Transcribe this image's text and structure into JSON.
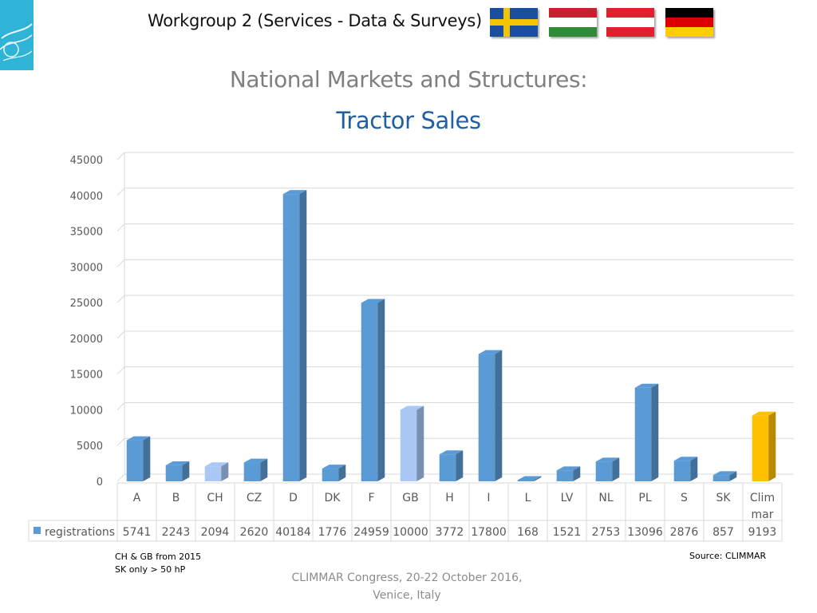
{
  "header": {
    "title": "Workgroup 2 (Services - Data & Surveys)",
    "flags": [
      {
        "name": "sweden-flag-icon",
        "colors": [
          "#1a4fa0",
          "#f5c400"
        ]
      },
      {
        "name": "hungary-flag-icon",
        "colors": [
          "#c8202f",
          "#ffffff",
          "#2e8b3a"
        ]
      },
      {
        "name": "austria-flag-icon",
        "colors": [
          "#e0202e",
          "#ffffff",
          "#e0202e"
        ]
      },
      {
        "name": "germany-flag-icon",
        "colors": [
          "#000000",
          "#dd0000",
          "#ffce00"
        ]
      }
    ]
  },
  "slide": {
    "title": "National Markets and Structures:",
    "subtitle": "Tractor Sales"
  },
  "chart_data": {
    "type": "bar",
    "style": "3d-columns-with-data-table",
    "categories": [
      "A",
      "B",
      "CH",
      "CZ",
      "D",
      "DK",
      "F",
      "GB",
      "H",
      "I",
      "L",
      "LV",
      "NL",
      "PL",
      "S",
      "SK",
      "Clim mar"
    ],
    "series": [
      {
        "name": "registrations",
        "values": [
          5741,
          2243,
          2094,
          2620,
          40184,
          1776,
          24959,
          10000,
          3772,
          17800,
          168,
          1521,
          2753,
          13096,
          2876,
          857,
          9193
        ]
      }
    ],
    "ylim": [
      0,
      45000
    ],
    "yticks": [
      0,
      5000,
      10000,
      15000,
      20000,
      25000,
      30000,
      35000,
      40000,
      45000
    ],
    "grid": true,
    "colors": {
      "default": "#5b9bd5",
      "highlight_light": "#a9c8f5",
      "highlight_total": "#ffc000"
    },
    "bar_color_keys": [
      "default",
      "default",
      "highlight_light",
      "default",
      "default",
      "default",
      "default",
      "highlight_light",
      "default",
      "default",
      "default",
      "default",
      "default",
      "default",
      "default",
      "default",
      "highlight_total"
    ]
  },
  "notes": {
    "line1": "CH & GB from 2015",
    "line2": "SK only > 50 hP",
    "source": "Source: CLIMMAR"
  },
  "footer": {
    "line1": "CLIMMAR Congress, 20-22 October 2016,",
    "line2": "Venice, Italy"
  }
}
